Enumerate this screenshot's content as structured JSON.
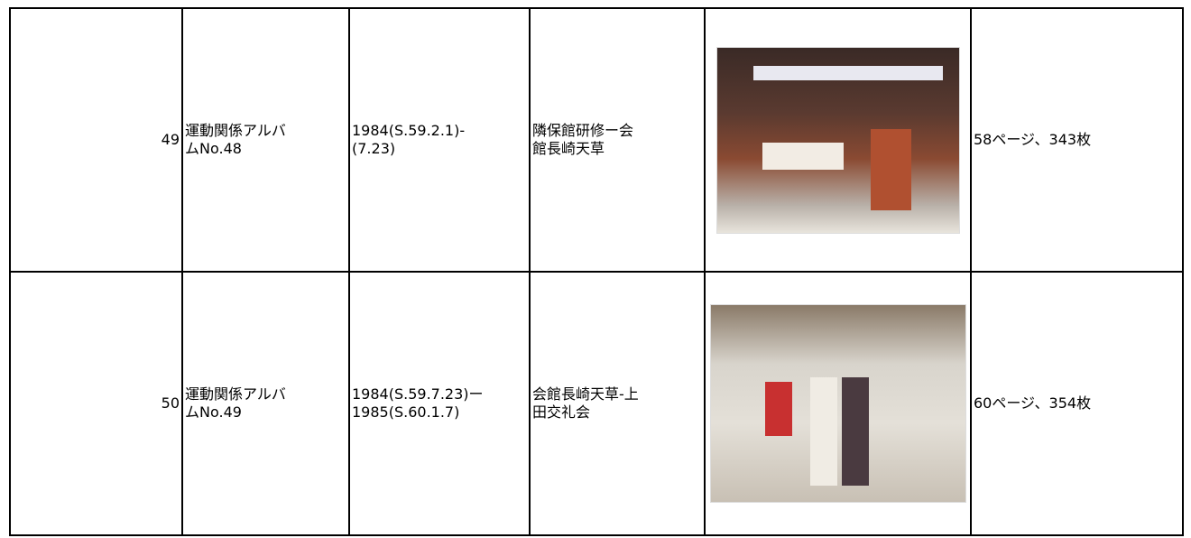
{
  "table": {
    "rows": [
      {
        "number": "49",
        "title": [
          "運動関係アルバ",
          "ムNo.48"
        ],
        "period": [
          "1984(S.59.2.1)-",
          "(7.23)"
        ],
        "place": [
          "隣保館研修ー会",
          "館長崎天草"
        ],
        "pages": "58ページ、343枚"
      },
      {
        "number": "50",
        "title": [
          "運動関係アルバ",
          "ムNo.49"
        ],
        "period": [
          "1984(S.59.7.23)ー",
          "1985(S.60.1.7)"
        ],
        "place": [
          "会館長崎天草-上",
          "田交礼会"
        ],
        "pages": "60ページ、354枚"
      }
    ]
  }
}
